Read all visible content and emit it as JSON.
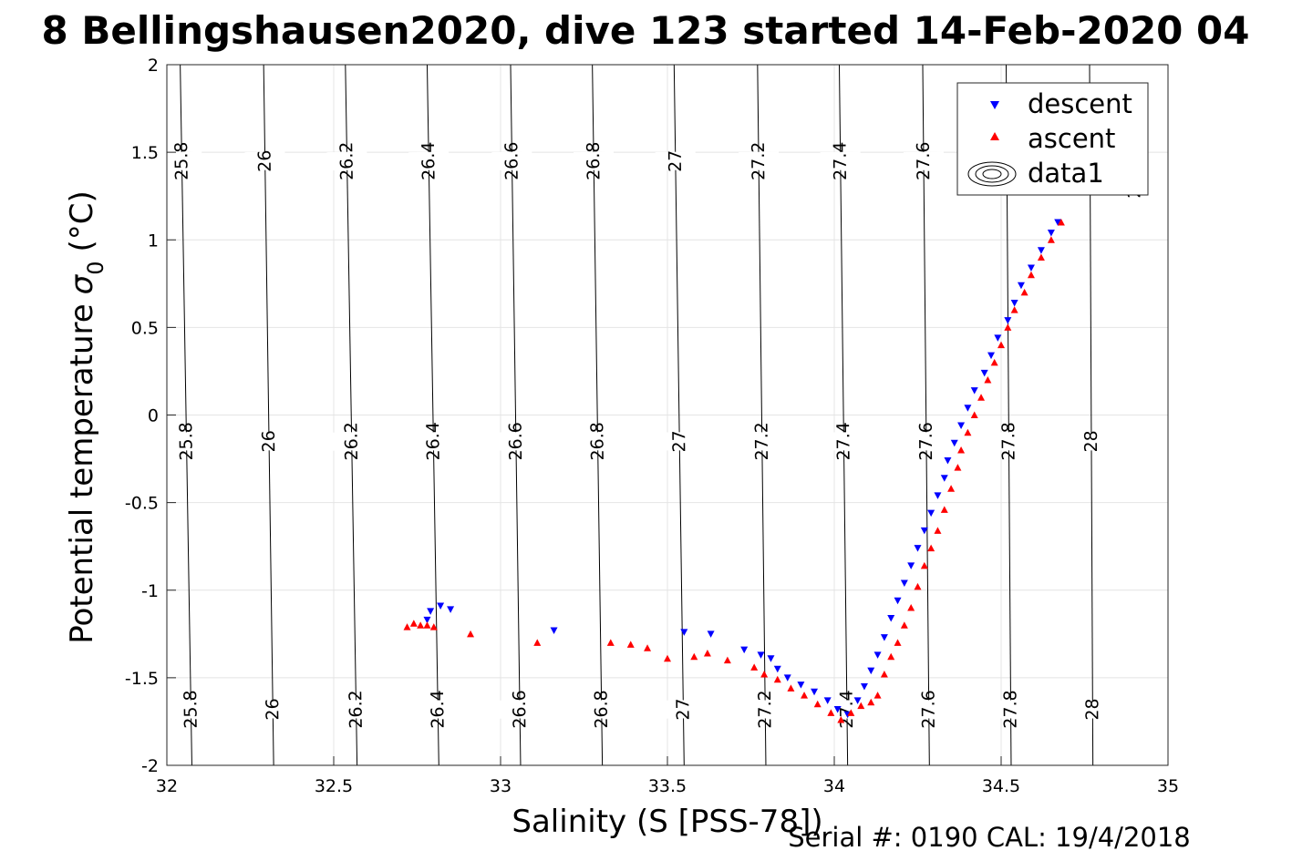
{
  "chart_data": {
    "type": "scatter",
    "title": "8 Bellingshausen2020, dive 123 started 14-Feb-2020 04",
    "xlabel": "Salinity (S [PSS-78])",
    "ylabel_main": "Potential temperature",
    "ylabel_sigma": "σ",
    "ylabel_sub": "0",
    "ylabel_unit": "(°C)",
    "footer": "Serial #: 0190  CAL: 19/4/2018",
    "xlim": [
      32,
      35
    ],
    "ylim": [
      -2,
      2
    ],
    "xticks": [
      "32",
      "32.5",
      "33",
      "33.5",
      "34",
      "34.5",
      "35"
    ],
    "yticks": [
      "2",
      "1.5",
      "1",
      "0.5",
      "0",
      "-0.5",
      "-1",
      "-1.5",
      "-2"
    ],
    "grid": true,
    "legend_position": "top-right",
    "legend": [
      {
        "key": "descent",
        "label": "descent",
        "marker": "triangle-down",
        "color": "#0000ff"
      },
      {
        "key": "ascent",
        "label": "ascent",
        "marker": "triangle-up",
        "color": "#ff0000"
      },
      {
        "key": "data1",
        "label": "data1",
        "marker": "contour",
        "color": "#000000"
      }
    ],
    "contour_levels": [
      "25.8",
      "26",
      "26.2",
      "26.4",
      "26.6",
      "26.8",
      "27",
      "27.2",
      "27.4",
      "27.6",
      "27.8",
      "28"
    ],
    "contours": [
      {
        "label": "25.8",
        "bottom_s": 32.075,
        "top_s": 32.04
      },
      {
        "label": "26",
        "bottom_s": 32.32,
        "top_s": 32.29
      },
      {
        "label": "26.2",
        "bottom_s": 32.57,
        "top_s": 32.535
      },
      {
        "label": "26.4",
        "bottom_s": 32.815,
        "top_s": 32.78
      },
      {
        "label": "26.6",
        "bottom_s": 33.06,
        "top_s": 33.03
      },
      {
        "label": "26.8",
        "bottom_s": 33.305,
        "top_s": 33.275
      },
      {
        "label": "27",
        "bottom_s": 33.55,
        "top_s": 33.52
      },
      {
        "label": "27.2",
        "bottom_s": 33.795,
        "top_s": 33.77
      },
      {
        "label": "27.4",
        "bottom_s": 34.04,
        "top_s": 34.015
      },
      {
        "label": "27.6",
        "bottom_s": 34.285,
        "top_s": 34.265
      },
      {
        "label": "27.8",
        "bottom_s": 34.53,
        "top_s": 34.515
      },
      {
        "label": "28",
        "bottom_s": 34.775,
        "top_s": 34.765
      }
    ],
    "series": [
      {
        "name": "descent",
        "points": [
          [
            32.78,
            -1.17
          ],
          [
            32.79,
            -1.12
          ],
          [
            32.82,
            -1.09
          ],
          [
            32.85,
            -1.11
          ],
          [
            33.16,
            -1.23
          ],
          [
            33.55,
            -1.24
          ],
          [
            33.63,
            -1.25
          ],
          [
            33.73,
            -1.34
          ],
          [
            33.78,
            -1.37
          ],
          [
            33.81,
            -1.39
          ],
          [
            33.83,
            -1.45
          ],
          [
            33.86,
            -1.5
          ],
          [
            33.9,
            -1.54
          ],
          [
            33.94,
            -1.58
          ],
          [
            33.98,
            -1.63
          ],
          [
            34.01,
            -1.68
          ],
          [
            34.04,
            -1.71
          ],
          [
            34.07,
            -1.63
          ],
          [
            34.09,
            -1.55
          ],
          [
            34.11,
            -1.46
          ],
          [
            34.13,
            -1.37
          ],
          [
            34.15,
            -1.27
          ],
          [
            34.17,
            -1.16
          ],
          [
            34.19,
            -1.06
          ],
          [
            34.21,
            -0.96
          ],
          [
            34.23,
            -0.86
          ],
          [
            34.25,
            -0.76
          ],
          [
            34.27,
            -0.66
          ],
          [
            34.29,
            -0.56
          ],
          [
            34.31,
            -0.46
          ],
          [
            34.33,
            -0.36
          ],
          [
            34.34,
            -0.26
          ],
          [
            34.36,
            -0.16
          ],
          [
            34.38,
            -0.06
          ],
          [
            34.4,
            0.04
          ],
          [
            34.42,
            0.14
          ],
          [
            34.45,
            0.24
          ],
          [
            34.47,
            0.34
          ],
          [
            34.49,
            0.44
          ],
          [
            34.52,
            0.54
          ],
          [
            34.54,
            0.64
          ],
          [
            34.56,
            0.74
          ],
          [
            34.59,
            0.84
          ],
          [
            34.62,
            0.94
          ],
          [
            34.65,
            1.04
          ],
          [
            34.67,
            1.1
          ]
        ]
      },
      {
        "name": "ascent",
        "points": [
          [
            32.72,
            -1.21
          ],
          [
            32.74,
            -1.19
          ],
          [
            32.76,
            -1.2
          ],
          [
            32.78,
            -1.2
          ],
          [
            32.8,
            -1.21
          ],
          [
            32.91,
            -1.25
          ],
          [
            33.11,
            -1.3
          ],
          [
            33.33,
            -1.3
          ],
          [
            33.39,
            -1.31
          ],
          [
            33.44,
            -1.33
          ],
          [
            33.5,
            -1.39
          ],
          [
            33.58,
            -1.38
          ],
          [
            33.62,
            -1.36
          ],
          [
            33.68,
            -1.4
          ],
          [
            33.76,
            -1.44
          ],
          [
            33.79,
            -1.48
          ],
          [
            33.83,
            -1.51
          ],
          [
            33.87,
            -1.56
          ],
          [
            33.91,
            -1.6
          ],
          [
            33.95,
            -1.65
          ],
          [
            33.99,
            -1.7
          ],
          [
            34.02,
            -1.74
          ],
          [
            34.05,
            -1.7
          ],
          [
            34.08,
            -1.66
          ],
          [
            34.11,
            -1.64
          ],
          [
            34.13,
            -1.6
          ],
          [
            34.15,
            -1.48
          ],
          [
            34.17,
            -1.38
          ],
          [
            34.19,
            -1.3
          ],
          [
            34.21,
            -1.2
          ],
          [
            34.23,
            -1.1
          ],
          [
            34.25,
            -0.98
          ],
          [
            34.27,
            -0.86
          ],
          [
            34.29,
            -0.76
          ],
          [
            34.31,
            -0.66
          ],
          [
            34.33,
            -0.54
          ],
          [
            34.35,
            -0.42
          ],
          [
            34.37,
            -0.3
          ],
          [
            34.38,
            -0.2
          ],
          [
            34.4,
            -0.1
          ],
          [
            34.42,
            0.0
          ],
          [
            34.44,
            0.1
          ],
          [
            34.46,
            0.2
          ],
          [
            34.48,
            0.3
          ],
          [
            34.5,
            0.4
          ],
          [
            34.52,
            0.5
          ],
          [
            34.54,
            0.6
          ],
          [
            34.57,
            0.7
          ],
          [
            34.59,
            0.8
          ],
          [
            34.62,
            0.9
          ],
          [
            34.65,
            1.0
          ],
          [
            34.68,
            1.1
          ]
        ]
      }
    ]
  }
}
